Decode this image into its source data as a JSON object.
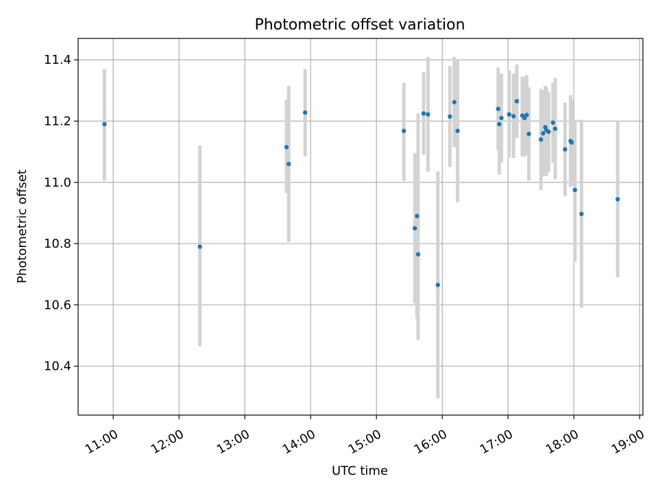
{
  "chart_data": {
    "type": "scatter",
    "title": "Photometric offset variation",
    "xlabel": "UTC time",
    "ylabel": "Photometric offset",
    "x_tick_labels": [
      "11:00",
      "12:00",
      "13:00",
      "14:00",
      "15:00",
      "16:00",
      "17:00",
      "18:00",
      "19:00"
    ],
    "x_ticks": [
      "11:00",
      "12:00",
      "13:00",
      "14:00",
      "15:00",
      "16:00",
      "17:00",
      "18:00",
      "19:00"
    ],
    "y_ticks": [
      10.4,
      10.6,
      10.8,
      11.0,
      11.2,
      11.4
    ],
    "y_tick_labels": [
      "10.4",
      "10.6",
      "10.8",
      "11.0",
      "11.2",
      "11.4"
    ],
    "xlim": [
      "10:28",
      "19:03"
    ],
    "ylim": [
      10.24,
      11.47
    ],
    "grid": true,
    "colors": {
      "points": "#1f77b4",
      "errorbars": "#d3d3d3",
      "grid": "#b0b0b0"
    },
    "points": [
      {
        "time": "10:52",
        "value": 11.19,
        "low": 11.005,
        "high": 11.37
      },
      {
        "time": "12:19",
        "value": 10.79,
        "low": 10.465,
        "high": 11.12
      },
      {
        "time": "13:38",
        "value": 11.115,
        "low": 10.965,
        "high": 11.27
      },
      {
        "time": "13:40",
        "value": 11.06,
        "low": 10.805,
        "high": 11.315
      },
      {
        "time": "13:55",
        "value": 11.228,
        "low": 11.085,
        "high": 11.37
      },
      {
        "time": "15:25",
        "value": 11.168,
        "low": 11.005,
        "high": 11.325
      },
      {
        "time": "15:35",
        "value": 10.85,
        "low": 10.605,
        "high": 11.095
      },
      {
        "time": "15:37",
        "value": 10.89,
        "low": 10.555,
        "high": 11.045
      },
      {
        "time": "15:38",
        "value": 10.765,
        "low": 10.485,
        "high": 11.225
      },
      {
        "time": "15:43",
        "value": 11.225,
        "low": 11.09,
        "high": 11.36
      },
      {
        "time": "15:47",
        "value": 11.222,
        "low": 11.035,
        "high": 11.41
      },
      {
        "time": "15:56",
        "value": 10.665,
        "low": 10.295,
        "high": 11.035
      },
      {
        "time": "16:07",
        "value": 11.215,
        "low": 11.05,
        "high": 11.38
      },
      {
        "time": "16:11",
        "value": 11.262,
        "low": 11.115,
        "high": 11.41
      },
      {
        "time": "16:14",
        "value": 11.168,
        "low": 10.935,
        "high": 11.4
      },
      {
        "time": "16:51",
        "value": 11.24,
        "low": 11.105,
        "high": 11.375
      },
      {
        "time": "16:52",
        "value": 11.19,
        "low": 11.025,
        "high": 11.355
      },
      {
        "time": "16:54",
        "value": 11.21,
        "low": 11.065,
        "high": 11.355
      },
      {
        "time": "17:01",
        "value": 11.222,
        "low": 11.08,
        "high": 11.365
      },
      {
        "time": "17:05",
        "value": 11.216,
        "low": 11.08,
        "high": 11.355
      },
      {
        "time": "17:08",
        "value": 11.265,
        "low": 11.145,
        "high": 11.385
      },
      {
        "time": "17:13",
        "value": 11.218,
        "low": 11.085,
        "high": 11.345
      },
      {
        "time": "17:15",
        "value": 11.21,
        "low": 11.085,
        "high": 11.345
      },
      {
        "time": "17:17",
        "value": 11.22,
        "low": 11.09,
        "high": 11.35
      },
      {
        "time": "17:19",
        "value": 11.158,
        "low": 11.005,
        "high": 11.31
      },
      {
        "time": "17:30",
        "value": 11.14,
        "low": 10.975,
        "high": 11.305
      },
      {
        "time": "17:32",
        "value": 11.16,
        "low": 11.02,
        "high": 11.3
      },
      {
        "time": "17:34",
        "value": 11.18,
        "low": 11.035,
        "high": 11.315
      },
      {
        "time": "17:35",
        "value": 11.17,
        "low": 11.02,
        "high": 11.31
      },
      {
        "time": "17:37",
        "value": 11.165,
        "low": 11.035,
        "high": 11.295
      },
      {
        "time": "17:41",
        "value": 11.195,
        "low": 11.065,
        "high": 11.325
      },
      {
        "time": "17:43",
        "value": 11.175,
        "low": 11.01,
        "high": 11.34
      },
      {
        "time": "17:52",
        "value": 11.108,
        "low": 10.955,
        "high": 11.26
      },
      {
        "time": "17:57",
        "value": 11.135,
        "low": 10.985,
        "high": 11.285
      },
      {
        "time": "17:58",
        "value": 11.13,
        "low": 10.99,
        "high": 11.27
      },
      {
        "time": "18:01",
        "value": 10.975,
        "low": 10.74,
        "high": 11.205
      },
      {
        "time": "18:07",
        "value": 10.897,
        "low": 10.59,
        "high": 11.205
      },
      {
        "time": "18:40",
        "value": 10.945,
        "low": 10.69,
        "high": 11.2
      }
    ]
  }
}
